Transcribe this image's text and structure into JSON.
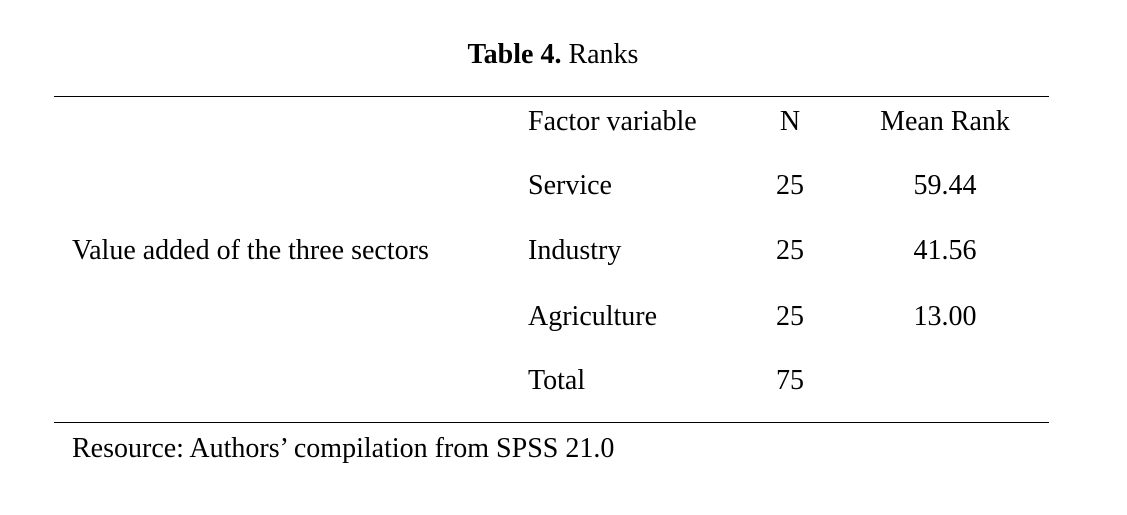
{
  "caption": {
    "label": "Table 4.",
    "text": "Ranks"
  },
  "table": {
    "header": [
      "Factor variable",
      "N",
      "Mean Rank"
    ],
    "row_group": "Value added of the three sectors",
    "rows": [
      [
        "Service",
        "25",
        "59.44"
      ],
      [
        "Industry",
        "25",
        "41.56"
      ],
      [
        "Agriculture",
        "25",
        "13.00"
      ],
      [
        "Total",
        "75"
      ]
    ]
  },
  "note": "Resource: Authors’ compilation from SPSS 21.0"
}
